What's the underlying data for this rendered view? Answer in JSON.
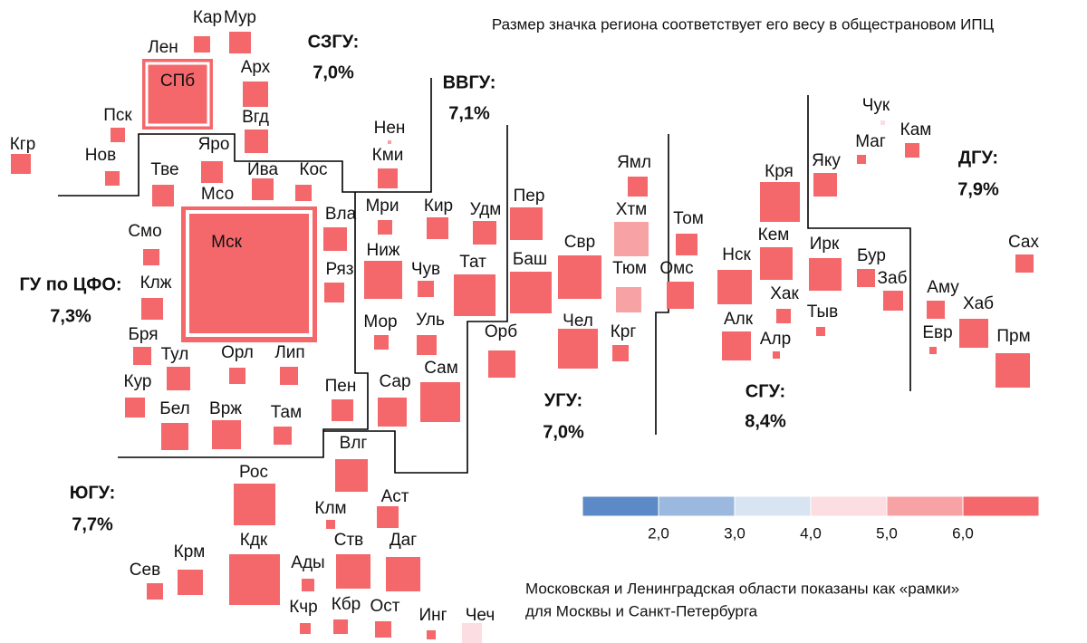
{
  "subtitle": "Размер значка региона соответствует его весу в общестрановом ИПЦ",
  "note": [
    "Московская и Ленинградская области показаны как «рамки»",
    "для Москвы и Санкт-Петербурга"
  ],
  "districts": [
    {
      "name": "СЗГУ:",
      "value": "7,0%"
    },
    {
      "name": "ВВГУ:",
      "value": "7,1%"
    },
    {
      "name": "ГУ по ЦФО:",
      "value": "7,3%"
    },
    {
      "name": "ЮГУ:",
      "value": "7,7%"
    },
    {
      "name": "УГУ:",
      "value": "7,0%"
    },
    {
      "name": "СГУ:",
      "value": "8,4%"
    },
    {
      "name": "ДГУ:",
      "value": "7,9%"
    }
  ],
  "legend": {
    "colors": [
      "#5b8ac6",
      "#9bb8de",
      "#d9e4f2",
      "#fbdde2",
      "#f7a3a5",
      "#f4676a"
    ],
    "ticks": [
      {
        "value": 2,
        "label": "2,0"
      },
      {
        "value": 3,
        "label": "3,0"
      },
      {
        "value": 4,
        "label": "4,0"
      },
      {
        "value": 5,
        "label": "5,0"
      },
      {
        "value": 6,
        "label": "6,0"
      }
    ]
  },
  "regions": [
    {
      "label": "Кар",
      "color": "#f4676a"
    },
    {
      "label": "Мур",
      "color": "#f4676a"
    },
    {
      "label": "Лен",
      "color": "#f4676a"
    },
    {
      "label": "СПб",
      "color": "#f4676a"
    },
    {
      "label": "Арх",
      "color": "#f4676a"
    },
    {
      "label": "Вгд",
      "color": "#f4676a"
    },
    {
      "label": "Пск",
      "color": "#f4676a"
    },
    {
      "label": "Нов",
      "color": "#f4676a"
    },
    {
      "label": "Кгр",
      "color": "#f4676a"
    },
    {
      "label": "Яро",
      "color": "#f4676a"
    },
    {
      "label": "Тве",
      "color": "#f4676a"
    },
    {
      "label": "Ива",
      "color": "#f4676a"
    },
    {
      "label": "Кос",
      "color": "#f4676a"
    },
    {
      "label": "Мсо",
      "color": "#f4676a"
    },
    {
      "label": "Мск",
      "color": "#f4676a"
    },
    {
      "label": "Вла",
      "color": "#f4676a"
    },
    {
      "label": "Смо",
      "color": "#f4676a"
    },
    {
      "label": "Клж",
      "color": "#f4676a"
    },
    {
      "label": "Бря",
      "color": "#f4676a"
    },
    {
      "label": "Тул",
      "color": "#f4676a"
    },
    {
      "label": "Орл",
      "color": "#f4676a"
    },
    {
      "label": "Лип",
      "color": "#f4676a"
    },
    {
      "label": "Кур",
      "color": "#f4676a"
    },
    {
      "label": "Бел",
      "color": "#f4676a"
    },
    {
      "label": "Врж",
      "color": "#f4676a"
    },
    {
      "label": "Там",
      "color": "#f4676a"
    },
    {
      "label": "Нен",
      "color": "#f7a3a5"
    },
    {
      "label": "Кми",
      "color": "#f4676a"
    },
    {
      "label": "Мри",
      "color": "#f4676a"
    },
    {
      "label": "Кир",
      "color": "#f4676a"
    },
    {
      "label": "Удм",
      "color": "#f4676a"
    },
    {
      "label": "Пер",
      "color": "#f4676a"
    },
    {
      "label": "Ниж",
      "color": "#f4676a"
    },
    {
      "label": "Ряз",
      "color": "#f4676a"
    },
    {
      "label": "Чув",
      "color": "#f4676a"
    },
    {
      "label": "Тат",
      "color": "#f4676a"
    },
    {
      "label": "Баш",
      "color": "#f4676a"
    },
    {
      "label": "Свр",
      "color": "#f4676a"
    },
    {
      "label": "Мор",
      "color": "#f4676a"
    },
    {
      "label": "Уль",
      "color": "#f4676a"
    },
    {
      "label": "Чел",
      "color": "#f4676a"
    },
    {
      "label": "Орб",
      "color": "#f4676a"
    },
    {
      "label": "Сам",
      "color": "#f4676a"
    },
    {
      "label": "Пен",
      "color": "#f4676a"
    },
    {
      "label": "Сар",
      "color": "#f4676a"
    },
    {
      "label": "Ямл",
      "color": "#f4676a"
    },
    {
      "label": "Хтм",
      "color": "#f7a3a5"
    },
    {
      "label": "Тюм",
      "color": "#f7a3a5"
    },
    {
      "label": "Крг",
      "color": "#f4676a"
    },
    {
      "label": "Том",
      "color": "#f4676a"
    },
    {
      "label": "Омс",
      "color": "#f4676a"
    },
    {
      "label": "Кря",
      "color": "#f4676a"
    },
    {
      "label": "Нск",
      "color": "#f4676a"
    },
    {
      "label": "Кем",
      "color": "#f4676a"
    },
    {
      "label": "Алк",
      "color": "#f4676a"
    },
    {
      "label": "Алр",
      "color": "#f4676a"
    },
    {
      "label": "Хак",
      "color": "#f4676a"
    },
    {
      "label": "Тыв",
      "color": "#f4676a"
    },
    {
      "label": "Ирк",
      "color": "#f4676a"
    },
    {
      "label": "Бур",
      "color": "#f4676a"
    },
    {
      "label": "Заб",
      "color": "#f4676a"
    },
    {
      "label": "Яку",
      "color": "#f4676a"
    },
    {
      "label": "Чук",
      "color": "#fbdde2"
    },
    {
      "label": "Маг",
      "color": "#f4676a"
    },
    {
      "label": "Кам",
      "color": "#f4676a"
    },
    {
      "label": "Аму",
      "color": "#f4676a"
    },
    {
      "label": "Хаб",
      "color": "#f4676a"
    },
    {
      "label": "Евр",
      "color": "#f4676a"
    },
    {
      "label": "Сах",
      "color": "#f4676a"
    },
    {
      "label": "Прм",
      "color": "#f4676a"
    },
    {
      "label": "Влг",
      "color": "#f4676a"
    },
    {
      "label": "Рос",
      "color": "#f4676a"
    },
    {
      "label": "Клм",
      "color": "#f4676a"
    },
    {
      "label": "Аст",
      "color": "#f4676a"
    },
    {
      "label": "Кдк",
      "color": "#f4676a"
    },
    {
      "label": "Ств",
      "color": "#f4676a"
    },
    {
      "label": "Даг",
      "color": "#f4676a"
    },
    {
      "label": "Ады",
      "color": "#f4676a"
    },
    {
      "label": "Сев",
      "color": "#f4676a"
    },
    {
      "label": "Крм",
      "color": "#f4676a"
    },
    {
      "label": "Кчр",
      "color": "#f4676a"
    },
    {
      "label": "Кбр",
      "color": "#f4676a"
    },
    {
      "label": "Ост",
      "color": "#f4676a"
    },
    {
      "label": "Инг",
      "color": "#f4676a"
    },
    {
      "label": "Чеч",
      "color": "#fbdde2"
    }
  ]
}
